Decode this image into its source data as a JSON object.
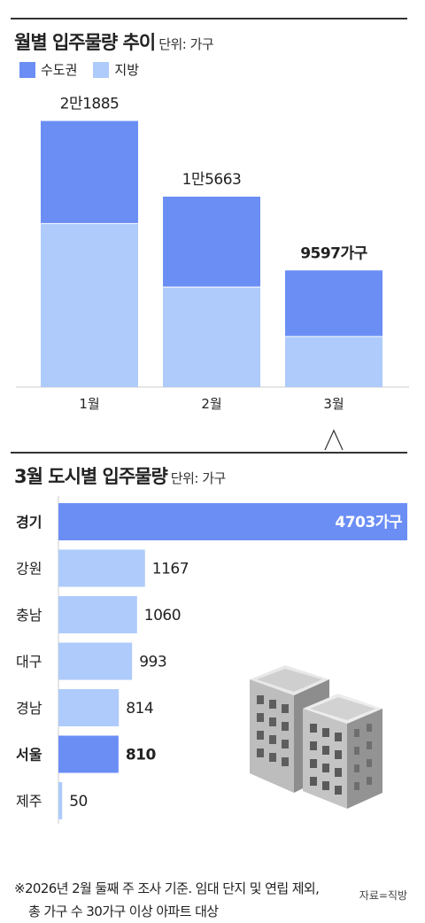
{
  "colors": {
    "capital": "#6b8ef5",
    "local": "#aecbfb",
    "text": "#222222"
  },
  "chart_data": [
    {
      "type": "bar",
      "stacked": true,
      "title": "월별 입주물량 추이",
      "unit_note": "단위: 가구",
      "categories": [
        "1월",
        "2월",
        "3월"
      ],
      "totals_labels": [
        "2만1885",
        "1만5663",
        "9597가구"
      ],
      "totals": [
        21885,
        15663,
        9597
      ],
      "series": [
        {
          "name": "수도권",
          "values": [
            8400,
            7400,
            5400
          ]
        },
        {
          "name": "지방",
          "values": [
            13485,
            8263,
            4197
          ]
        }
      ],
      "ylim": [
        0,
        22000
      ],
      "highlight_category": "3월",
      "legend_position": "top-left"
    },
    {
      "type": "bar",
      "orientation": "horizontal",
      "title": "3월 도시별 입주물량",
      "unit_note": "단위: 가구",
      "categories": [
        "경기",
        "강원",
        "충남",
        "대구",
        "경남",
        "서울",
        "제주"
      ],
      "values": [
        4703,
        1167,
        1060,
        993,
        814,
        810,
        50
      ],
      "value_labels": [
        "4703가구",
        "1167",
        "1060",
        "993",
        "814",
        "810",
        "50"
      ],
      "highlighted": [
        "경기",
        "서울"
      ],
      "xlim": [
        0,
        4703
      ]
    }
  ],
  "footnote": [
    "※2026년 2월 둘째 주 조사 기준. 임대 단지 및 연립 제외,",
    "총 가구 수 30가구 이상 아파트 대상"
  ],
  "source": "자료=직방",
  "illustration": "apartment-buildings-icon"
}
